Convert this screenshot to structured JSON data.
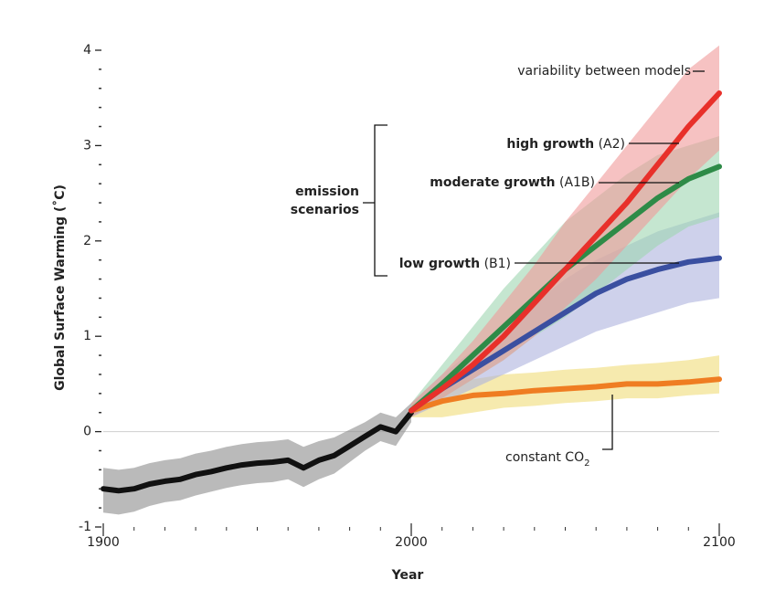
{
  "chart_data": {
    "type": "line",
    "y_label": "Global Surface Warming (˚C)",
    "x_label": "Year",
    "xlim": [
      1900,
      2100
    ],
    "xticks": [
      1900,
      2000,
      2100
    ],
    "xminor_ticks": [
      1910,
      1920,
      1930,
      1940,
      1950,
      1960,
      1970,
      1980,
      1990,
      2010,
      2020,
      2030,
      2040,
      2050,
      2060,
      2070,
      2080,
      2090
    ],
    "ylim": [
      -1,
      4
    ],
    "yticks": [
      -1,
      0,
      1,
      2,
      3,
      4
    ],
    "yminor_ticks": [
      -0.8,
      -0.6,
      -0.4,
      -0.2,
      0.2,
      0.4,
      0.6,
      0.8,
      1.2,
      1.4,
      1.6,
      1.8,
      2.2,
      2.4,
      2.6,
      2.8,
      3.2,
      3.4,
      3.6,
      3.8
    ],
    "zero_line": true,
    "annotations": {
      "variability": "variability between models",
      "high": {
        "bold": "high growth",
        "normal": "(A2)"
      },
      "moderate": {
        "bold": "moderate growth",
        "normal": "(A1B)"
      },
      "low": {
        "bold": "low growth",
        "normal": "(B1)"
      },
      "emission": [
        "emission",
        "scenarios"
      ],
      "constant": {
        "text": "constant CO",
        "sub": "2"
      }
    },
    "series": [
      {
        "color": "#111111",
        "band_color": "#8c8c8c",
        "x": [
          1900,
          1905,
          1910,
          1915,
          1920,
          1925,
          1930,
          1935,
          1940,
          1945,
          1950,
          1955,
          1960,
          1965,
          1970,
          1975,
          1980,
          1985,
          1990,
          1995,
          2000
        ],
        "values": [
          -0.6,
          -0.62,
          -0.6,
          -0.55,
          -0.52,
          -0.5,
          -0.45,
          -0.42,
          -0.38,
          -0.35,
          -0.33,
          -0.32,
          -0.3,
          -0.38,
          -0.3,
          -0.25,
          -0.15,
          -0.05,
          0.05,
          0.0,
          0.2
        ],
        "upper": [
          -0.38,
          -0.4,
          -0.38,
          -0.33,
          -0.3,
          -0.28,
          -0.23,
          -0.2,
          -0.16,
          -0.13,
          -0.11,
          -0.1,
          -0.08,
          -0.16,
          -0.1,
          -0.06,
          0.02,
          0.1,
          0.2,
          0.15,
          0.3
        ],
        "lower": [
          -0.85,
          -0.87,
          -0.84,
          -0.78,
          -0.74,
          -0.72,
          -0.67,
          -0.63,
          -0.59,
          -0.56,
          -0.54,
          -0.53,
          -0.5,
          -0.58,
          -0.5,
          -0.44,
          -0.32,
          -0.2,
          -0.1,
          -0.15,
          0.1
        ]
      },
      {
        "color": "#ef7d22",
        "band_color": "#f0dc78",
        "x": [
          2000,
          2010,
          2020,
          2030,
          2040,
          2050,
          2060,
          2070,
          2080,
          2090,
          2100
        ],
        "values": [
          0.22,
          0.32,
          0.38,
          0.4,
          0.43,
          0.45,
          0.47,
          0.5,
          0.5,
          0.52,
          0.55
        ],
        "upper": [
          0.3,
          0.5,
          0.55,
          0.6,
          0.62,
          0.65,
          0.67,
          0.7,
          0.72,
          0.75,
          0.8
        ],
        "lower": [
          0.15,
          0.15,
          0.2,
          0.25,
          0.27,
          0.3,
          0.32,
          0.35,
          0.35,
          0.38,
          0.4
        ]
      },
      {
        "color": "#3a4fa0",
        "band_color": "#aeb3de",
        "x": [
          2000,
          2010,
          2020,
          2030,
          2040,
          2050,
          2060,
          2070,
          2080,
          2090,
          2100
        ],
        "values": [
          0.22,
          0.45,
          0.65,
          0.85,
          1.05,
          1.25,
          1.45,
          1.6,
          1.7,
          1.78,
          1.82
        ],
        "upper": [
          0.3,
          0.6,
          0.85,
          1.1,
          1.35,
          1.6,
          1.8,
          1.95,
          2.1,
          2.2,
          2.3
        ],
        "lower": [
          0.15,
          0.3,
          0.45,
          0.6,
          0.75,
          0.9,
          1.05,
          1.15,
          1.25,
          1.35,
          1.4
        ]
      },
      {
        "color": "#2e8b47",
        "band_color": "#9fd6b0",
        "x": [
          2000,
          2010,
          2020,
          2030,
          2040,
          2050,
          2060,
          2070,
          2080,
          2090,
          2100
        ],
        "values": [
          0.22,
          0.5,
          0.8,
          1.1,
          1.4,
          1.7,
          1.95,
          2.2,
          2.45,
          2.65,
          2.78
        ],
        "upper": [
          0.3,
          0.7,
          1.1,
          1.5,
          1.85,
          2.2,
          2.45,
          2.7,
          2.9,
          3.0,
          3.1
        ],
        "lower": [
          0.15,
          0.35,
          0.55,
          0.75,
          1.0,
          1.2,
          1.45,
          1.7,
          1.95,
          2.15,
          2.25
        ]
      },
      {
        "color": "#e8302a",
        "band_color": "#f09a9a",
        "x": [
          2000,
          2010,
          2020,
          2030,
          2040,
          2050,
          2060,
          2070,
          2080,
          2090,
          2100
        ],
        "values": [
          0.22,
          0.45,
          0.7,
          1.0,
          1.35,
          1.7,
          2.05,
          2.4,
          2.8,
          3.2,
          3.55
        ],
        "upper": [
          0.3,
          0.6,
          0.95,
          1.35,
          1.75,
          2.2,
          2.6,
          3.0,
          3.4,
          3.8,
          4.05
        ],
        "lower": [
          0.15,
          0.35,
          0.55,
          0.75,
          1.0,
          1.3,
          1.6,
          1.95,
          2.3,
          2.65,
          2.95
        ]
      }
    ]
  }
}
